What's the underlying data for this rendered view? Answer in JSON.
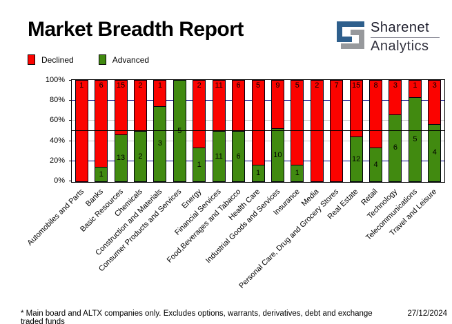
{
  "header": {
    "title": "Market Breadth Report",
    "logo": {
      "line1": "Sharenet",
      "line2": "Analytics",
      "icon": "sharenet-glyph",
      "blue": "#2e5f8c",
      "gray": "#97999c"
    }
  },
  "legend": {
    "items": [
      {
        "label": "Declined",
        "color": "#fb0300"
      },
      {
        "label": "Advanced",
        "color": "#418a10"
      }
    ]
  },
  "chart_data": {
    "type": "bar",
    "stacked": true,
    "units": "percent of total (100% stacked)",
    "title": "Market Breadth Report",
    "categories": [
      "Automobiles and Parts",
      "Banks",
      "Basic Resources",
      "Chemicals",
      "Construction and Materials",
      "Consumer Products and Services",
      "Energy",
      "Financial Services",
      "Food,Beverages and Tabacco",
      "Health Care",
      "Industrial Goods and Services",
      "Insurance",
      "Media",
      "Personal Care, Drug and Grocery Stores",
      "Real Estate",
      "Retail",
      "Technology",
      "Telecommunications",
      "Travel and Leisure"
    ],
    "series": [
      {
        "name": "Declined",
        "color": "#fb0300",
        "values": [
          1,
          6,
          15,
          2,
          1,
          0,
          2,
          11,
          6,
          5,
          9,
          5,
          2,
          7,
          15,
          8,
          3,
          1,
          3
        ]
      },
      {
        "name": "Advanced",
        "color": "#418a10",
        "values": [
          0,
          1,
          13,
          2,
          3,
          5,
          1,
          11,
          6,
          1,
          10,
          1,
          0,
          0,
          12,
          4,
          6,
          5,
          4
        ]
      }
    ],
    "ylim": [
      0,
      100
    ],
    "y_ticks": [
      {
        "label": "100%",
        "value": 100
      },
      {
        "label": "80%",
        "value": 80
      },
      {
        "label": "60%",
        "value": 60
      },
      {
        "label": "40%",
        "value": 40
      },
      {
        "label": "20%",
        "value": 20
      },
      {
        "label": "0%",
        "value": 0
      }
    ],
    "gridlines": [
      {
        "value": 80,
        "color": "#000080"
      },
      {
        "value": 60,
        "color": "#c4c4c4"
      },
      {
        "value": 50,
        "color": "#000000"
      },
      {
        "value": 40,
        "color": "#c4c4c4"
      },
      {
        "value": 20,
        "color": "#000080"
      }
    ],
    "legend_position": "top-left"
  },
  "footer": {
    "note": "* Main board and ALTX companies only. Excludes options, warrants, derivatives, debt and exchange traded funds",
    "date": "27/12/2024"
  }
}
